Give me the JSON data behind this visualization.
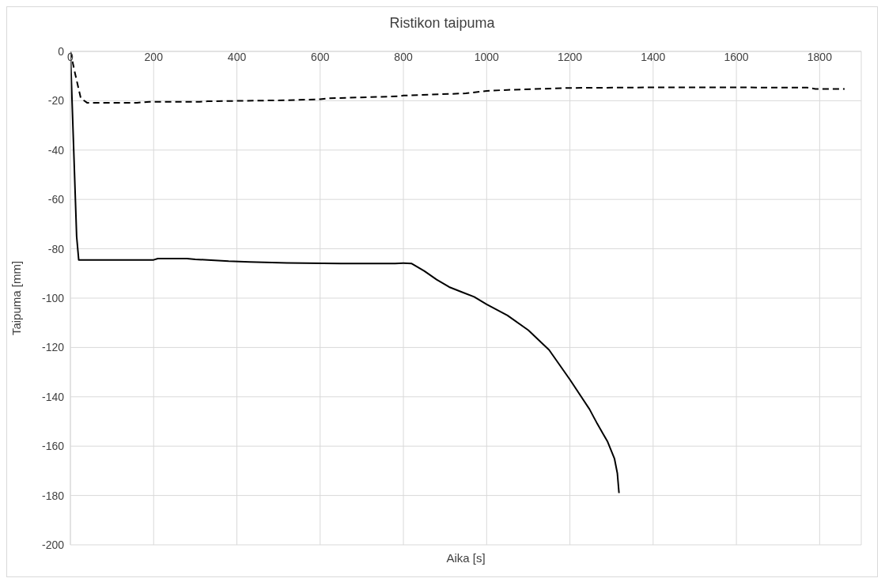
{
  "chart_data": {
    "type": "line",
    "title": "Ristikon taipuma",
    "xlabel": "Aika [s]",
    "ylabel": "Taipuma [mm]",
    "xlim": [
      0,
      1900
    ],
    "xticks": [
      0,
      200,
      400,
      600,
      800,
      1000,
      1200,
      1400,
      1600,
      1800
    ],
    "ylim": [
      -200,
      0
    ],
    "yticks": [
      -200,
      -180,
      -160,
      -140,
      -120,
      -100,
      -80,
      -60,
      -40,
      -20,
      0
    ],
    "grid": true,
    "marker": "none",
    "series": [
      {
        "color": "#000000",
        "line_style": "solid",
        "x": [
          0,
          15,
          20,
          200,
          210,
          280,
          300,
          330,
          380,
          430,
          520,
          650,
          780,
          800,
          820,
          850,
          880,
          910,
          940,
          970,
          1000,
          1050,
          1100,
          1150,
          1200,
          1247,
          1266,
          1290,
          1307,
          1314,
          1318
        ],
        "values": [
          0,
          -75,
          -84.5,
          -84.5,
          -84,
          -84,
          -84.3,
          -84.5,
          -85,
          -85.3,
          -85.7,
          -86,
          -86,
          -85.8,
          -86,
          -89,
          -92.5,
          -95.5,
          -97.5,
          -99.5,
          -102.5,
          -107,
          -113,
          -121,
          -133,
          -145,
          -151,
          -158,
          -165,
          -171,
          -179
        ]
      },
      {
        "color": "#000000",
        "line_style": "dashed",
        "x": [
          0,
          10,
          25,
          40,
          160,
          190,
          310,
          330,
          520,
          600,
          620,
          790,
          800,
          950,
          1000,
          1050,
          1200,
          1400,
          1600,
          1770,
          1790,
          1860
        ],
        "values": [
          0,
          -8,
          -19,
          -20.8,
          -20.8,
          -20.4,
          -20.4,
          -20.2,
          -19.8,
          -19.4,
          -19,
          -18.2,
          -17.9,
          -17,
          -16,
          -15.6,
          -14.8,
          -14.6,
          -14.6,
          -14.7,
          -15.2,
          -15.2
        ]
      }
    ]
  }
}
